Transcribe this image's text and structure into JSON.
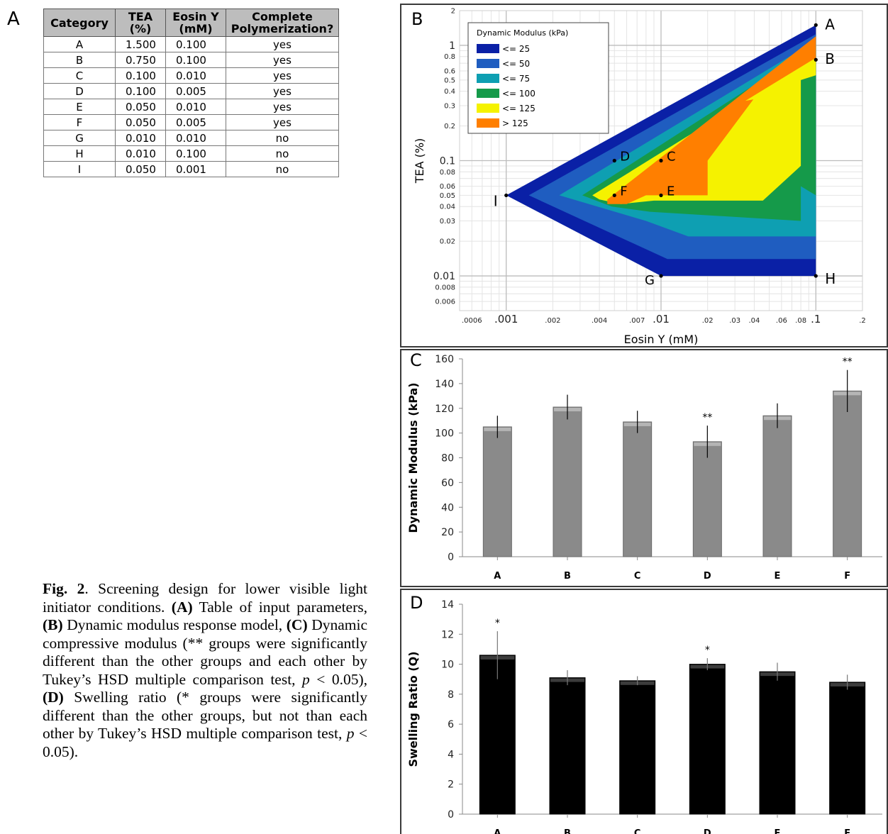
{
  "panel_letters": {
    "a": "A",
    "b": "B",
    "c": "C",
    "d": "D"
  },
  "table": {
    "headers": [
      "Category",
      "TEA (%)",
      "Eosin Y (mM)",
      "Complete Polymerization?"
    ],
    "header_lines": [
      [
        "Category"
      ],
      [
        "TEA",
        "(%)"
      ],
      [
        "Eosin Y",
        "(mM)"
      ],
      [
        "Complete",
        "Polymerization?"
      ]
    ],
    "rows": [
      [
        "A",
        "1.500",
        "0.100",
        "yes"
      ],
      [
        "B",
        "0.750",
        "0.100",
        "yes"
      ],
      [
        "C",
        "0.100",
        "0.010",
        "yes"
      ],
      [
        "D",
        "0.100",
        "0.005",
        "yes"
      ],
      [
        "E",
        "0.050",
        "0.010",
        "yes"
      ],
      [
        "F",
        "0.050",
        "0.005",
        "yes"
      ],
      [
        "G",
        "0.010",
        "0.010",
        "no"
      ],
      [
        "H",
        "0.010",
        "0.100",
        "no"
      ],
      [
        "I",
        "0.050",
        "0.001",
        "no"
      ]
    ]
  },
  "caption": {
    "fig": "Fig. 2",
    "text1": ". Screening design for lower visible light initiator conditions. ",
    "a_tag": "(A)",
    "a_text": " Table of input parameters, ",
    "b_tag": "(B)",
    "b_text": " Dynamic modulus response model, ",
    "c_tag": "(C)",
    "c_text": " Dynamic compressive modulus (** groups were significantly different than the other groups and each other by Tukey’s HSD multiple comparison test, ",
    "p1": "p",
    "p1_text": " < 0.05), ",
    "d_tag": "(D)",
    "d_text": " Swelling ratio (* groups were significantly different than the other groups, but not than each other by Tukey’s HSD multiple comparison test, ",
    "p2": "p",
    "p2_text": " < 0.05)."
  },
  "colors": {
    "c25": "#0a20a6",
    "c50": "#1f5dc0",
    "c75": "#0e9fb2",
    "c100": "#159a4a",
    "c125": "#f5f200",
    "cgt": "#ff7f00",
    "bar_gray": "#8a8a8a",
    "bar_black": "#000000"
  },
  "chart_data": [
    {
      "type": "area",
      "title": "",
      "xlabel": "Eosin Y (mM)",
      "ylabel": "TEA (%)",
      "xscale": "log",
      "yscale": "log",
      "xlim": [
        0.0005,
        0.2
      ],
      "ylim": [
        0.005,
        2
      ],
      "grid": true,
      "x_ticks": [
        ".0006",
        ".001",
        ".002",
        ".004",
        ".007",
        ".01",
        ".02",
        ".03",
        ".04",
        ".06",
        ".08",
        ".1",
        ".2"
      ],
      "x_tick_values": [
        0.0006,
        0.001,
        0.002,
        0.004,
        0.007,
        0.01,
        0.02,
        0.03,
        0.04,
        0.06,
        0.08,
        0.1,
        0.2
      ],
      "y_ticks": [
        "0.006",
        "0.008",
        "0.01",
        "0.02",
        "0.03",
        "0.04",
        "0.05",
        "0.06",
        "0.08",
        "0.1",
        "0.2",
        "0.3",
        "0.4",
        "0.5",
        "0.6",
        "0.8",
        "1",
        "2"
      ],
      "y_tick_values": [
        0.006,
        0.008,
        0.01,
        0.02,
        0.03,
        0.04,
        0.05,
        0.06,
        0.08,
        0.1,
        0.2,
        0.3,
        0.4,
        0.5,
        0.6,
        0.8,
        1,
        2
      ],
      "legend": {
        "title": "Dynamic Modulus (kPa)",
        "placement": "top-left",
        "entries": [
          {
            "label": "<= 25",
            "color": "#0a20a6"
          },
          {
            "label": "<= 50",
            "color": "#1f5dc0"
          },
          {
            "label": "<= 75",
            "color": "#0e9fb2"
          },
          {
            "label": "<= 100",
            "color": "#159a4a"
          },
          {
            "label": "<= 125",
            "color": "#f5f200"
          },
          {
            "label": "> 125",
            "color": "#ff7f00"
          }
        ]
      },
      "regions": [
        {
          "label": "<= 25",
          "points": [
            [
              0.001,
              0.05
            ],
            [
              0.1,
              1.5
            ],
            [
              0.1,
              0.01
            ],
            [
              0.01,
              0.01
            ]
          ]
        },
        {
          "label": "<= 50",
          "points": [
            [
              0.0014,
              0.05
            ],
            [
              0.1,
              1.25
            ],
            [
              0.1,
              0.014
            ],
            [
              0.011,
              0.014
            ]
          ]
        },
        {
          "label": "<= 75",
          "points": [
            [
              0.0022,
              0.05
            ],
            [
              0.1,
              1.1
            ],
            [
              0.1,
              0.022
            ],
            [
              0.015,
              0.022
            ],
            [
              0.008,
              0.03
            ]
          ]
        },
        {
          "label": "<= 100",
          "points": [
            [
              0.0031,
              0.05
            ],
            [
              0.1,
              1.0
            ],
            [
              0.1,
              0.05
            ],
            [
              0.08,
              0.06
            ],
            [
              0.08,
              0.03
            ],
            [
              0.0085,
              0.036
            ],
            [
              0.0048,
              0.04
            ]
          ]
        },
        {
          "label": "<= 125",
          "points": [
            [
              0.0036,
              0.05
            ],
            [
              0.1,
              0.8
            ],
            [
              0.1,
              0.55
            ],
            [
              0.08,
              0.5
            ],
            [
              0.08,
              0.09
            ],
            [
              0.0455,
              0.045
            ],
            [
              0.009,
              0.045
            ],
            [
              0.0055,
              0.042
            ],
            [
              0.004,
              0.046
            ]
          ]
        },
        {
          "label": "> 125",
          "points": [
            [
              0.0045,
              0.046
            ],
            [
              0.1,
              1.2
            ],
            [
              0.1,
              0.78
            ],
            [
              0.035,
              0.33
            ],
            [
              0.0395,
              0.34
            ],
            [
              0.02,
              0.1
            ],
            [
              0.02,
              0.05
            ],
            [
              0.008,
              0.05
            ],
            [
              0.006,
              0.042
            ],
            [
              0.0045,
              0.042
            ]
          ]
        }
      ],
      "points": [
        {
          "label": "A",
          "x": 0.1,
          "y": 1.5
        },
        {
          "label": "B",
          "x": 0.1,
          "y": 0.75
        },
        {
          "label": "C",
          "x": 0.01,
          "y": 0.1
        },
        {
          "label": "D",
          "x": 0.005,
          "y": 0.1
        },
        {
          "label": "E",
          "x": 0.01,
          "y": 0.05
        },
        {
          "label": "F",
          "x": 0.005,
          "y": 0.05
        },
        {
          "label": "G",
          "x": 0.01,
          "y": 0.01
        },
        {
          "label": "H",
          "x": 0.1,
          "y": 0.01
        },
        {
          "label": "I",
          "x": 0.001,
          "y": 0.05
        }
      ]
    },
    {
      "type": "bar",
      "title": "",
      "xlabel": "",
      "ylabel": "Dynamic Modulus (kPa)",
      "categories": [
        "A",
        "B",
        "C",
        "D",
        "E",
        "F"
      ],
      "values": [
        105,
        121,
        109,
        93,
        114,
        134
      ],
      "errors": [
        9,
        10,
        9,
        13,
        10,
        17
      ],
      "annotations": [
        "",
        "",
        "",
        "**",
        "",
        "**"
      ],
      "ylim": [
        0,
        160
      ],
      "y_ticks": [
        0,
        20,
        40,
        60,
        80,
        100,
        120,
        140,
        160
      ]
    },
    {
      "type": "bar",
      "title": "",
      "xlabel": "",
      "ylabel": "Swelling Ratio (Q)",
      "categories": [
        "A",
        "B",
        "C",
        "D",
        "E",
        "F"
      ],
      "values": [
        10.6,
        9.1,
        8.9,
        10.0,
        9.5,
        8.8
      ],
      "errors": [
        1.6,
        0.5,
        0.3,
        0.4,
        0.6,
        0.5
      ],
      "annotations": [
        "*",
        "",
        "",
        "*",
        "",
        ""
      ],
      "ylim": [
        0,
        14
      ],
      "y_ticks": [
        0,
        2,
        4,
        6,
        8,
        10,
        12,
        14
      ]
    }
  ]
}
